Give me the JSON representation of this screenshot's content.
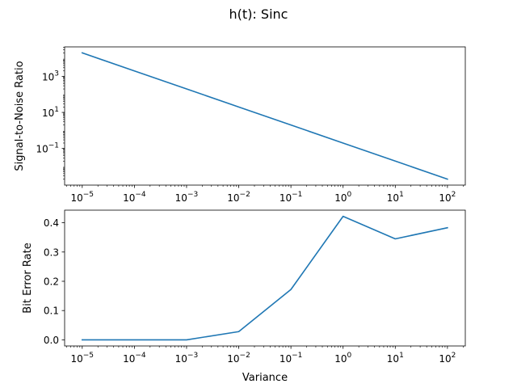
{
  "figure": {
    "title": "h(t): Sinc"
  },
  "chart_data": [
    {
      "type": "line",
      "x": [
        1e-05,
        0.0001,
        0.001,
        0.01,
        0.1,
        1,
        10,
        100
      ],
      "y": [
        20000,
        2000,
        200,
        20,
        2,
        0.2,
        0.02,
        0.002
      ],
      "xscale": "log",
      "yscale": "log",
      "xlim": [
        4.6e-06,
        220
      ],
      "ylim": [
        0.00093,
        43000
      ],
      "xlabel": "",
      "ylabel": "Signal-to-Noise Ratio",
      "yticks": [
        {
          "base": "10",
          "exp": "3",
          "value": 1000
        },
        {
          "base": "10",
          "exp": "1",
          "value": 10
        },
        {
          "base": "10",
          "exp": "−1",
          "value": 0.1
        }
      ],
      "xticks": [
        {
          "base": "10",
          "exp": "−5",
          "value": 1e-05
        },
        {
          "base": "10",
          "exp": "−4",
          "value": 0.0001
        },
        {
          "base": "10",
          "exp": "−3",
          "value": 0.001
        },
        {
          "base": "10",
          "exp": "−2",
          "value": 0.01
        },
        {
          "base": "10",
          "exp": "−1",
          "value": 0.1
        },
        {
          "base": "10",
          "exp": "0",
          "value": 1
        },
        {
          "base": "10",
          "exp": "1",
          "value": 10
        },
        {
          "base": "10",
          "exp": "2",
          "value": 100
        }
      ],
      "color": "#1f77b4",
      "grid": false
    },
    {
      "type": "line",
      "x": [
        1e-05,
        0.0001,
        0.001,
        0.01,
        0.1,
        1,
        10,
        100
      ],
      "y": [
        0.0,
        0.0,
        0.0,
        0.028,
        0.172,
        0.422,
        0.345,
        0.383
      ],
      "xscale": "log",
      "yscale": "linear",
      "xlim": [
        4.6e-06,
        220
      ],
      "ylim": [
        -0.021,
        0.443
      ],
      "xlabel": "Variance",
      "ylabel": "Bit Error Rate",
      "yticks": [
        {
          "label": "0.0",
          "value": 0.0
        },
        {
          "label": "0.1",
          "value": 0.1
        },
        {
          "label": "0.2",
          "value": 0.2
        },
        {
          "label": "0.3",
          "value": 0.3
        },
        {
          "label": "0.4",
          "value": 0.4
        }
      ],
      "xticks": [
        {
          "base": "10",
          "exp": "−5",
          "value": 1e-05
        },
        {
          "base": "10",
          "exp": "−4",
          "value": 0.0001
        },
        {
          "base": "10",
          "exp": "−3",
          "value": 0.001
        },
        {
          "base": "10",
          "exp": "−2",
          "value": 0.01
        },
        {
          "base": "10",
          "exp": "−1",
          "value": 0.1
        },
        {
          "base": "10",
          "exp": "0",
          "value": 1
        },
        {
          "base": "10",
          "exp": "1",
          "value": 10
        },
        {
          "base": "10",
          "exp": "2",
          "value": 100
        }
      ],
      "color": "#1f77b4",
      "grid": false
    }
  ]
}
